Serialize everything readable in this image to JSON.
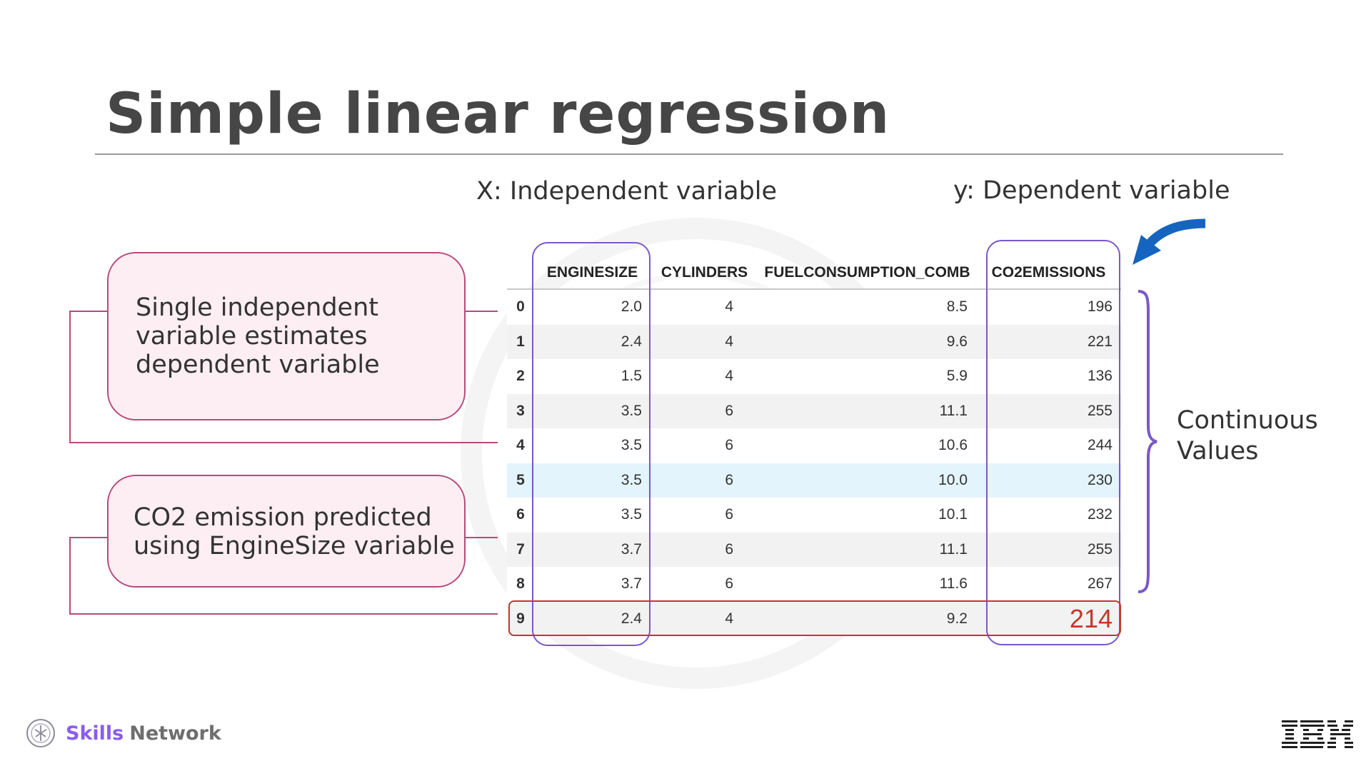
{
  "slide": {
    "title": "Simple linear regression"
  },
  "labels": {
    "x_label": "X: Independent variable",
    "y_label": "y: Dependent variable",
    "continuous_line1": "Continuous",
    "continuous_line2": "Values"
  },
  "callouts": {
    "first": {
      "line1": "Single independent",
      "line2": "variable estimates",
      "line3": "dependent variable"
    },
    "second": {
      "line1": "CO2 emission predicted",
      "line2": "using EngineSize variable"
    }
  },
  "table": {
    "columns": [
      "",
      "ENGINESIZE",
      "CYLINDERS",
      "FUELCONSUMPTION_COMB",
      "CO2EMISSIONS"
    ],
    "rows": [
      {
        "index": "0",
        "enginesize": "2.0",
        "cylinders": "4",
        "fuel": "8.5",
        "co2": "196"
      },
      {
        "index": "1",
        "enginesize": "2.4",
        "cylinders": "4",
        "fuel": "9.6",
        "co2": "221"
      },
      {
        "index": "2",
        "enginesize": "1.5",
        "cylinders": "4",
        "fuel": "5.9",
        "co2": "136"
      },
      {
        "index": "3",
        "enginesize": "3.5",
        "cylinders": "6",
        "fuel": "11.1",
        "co2": "255"
      },
      {
        "index": "4",
        "enginesize": "3.5",
        "cylinders": "6",
        "fuel": "10.6",
        "co2": "244"
      },
      {
        "index": "5",
        "enginesize": "3.5",
        "cylinders": "6",
        "fuel": "10.0",
        "co2": "230"
      },
      {
        "index": "6",
        "enginesize": "3.5",
        "cylinders": "6",
        "fuel": "10.1",
        "co2": "232"
      },
      {
        "index": "7",
        "enginesize": "3.7",
        "cylinders": "6",
        "fuel": "11.1",
        "co2": "255"
      },
      {
        "index": "8",
        "enginesize": "3.7",
        "cylinders": "6",
        "fuel": "11.6",
        "co2": "267"
      },
      {
        "index": "9",
        "enginesize": "2.4",
        "cylinders": "4",
        "fuel": "9.2",
        "co2": "214"
      }
    ],
    "highlighted_row_index": "5",
    "predicted_row_index": "9"
  },
  "brand": {
    "skills": "Skills",
    "network": "Network",
    "logo_icon": "skills-network-logo",
    "company_logo_text": "IBM"
  },
  "colors": {
    "title": "#464646",
    "callout_fill": "#fdeef3",
    "callout_border": "#b84a7c",
    "column_highlight": "#7b57c9",
    "prediction": "#c0392b",
    "arrow": "#1565c0",
    "row_highlight": "#e3f4fc",
    "brand_purple": "#8a5cf0"
  }
}
